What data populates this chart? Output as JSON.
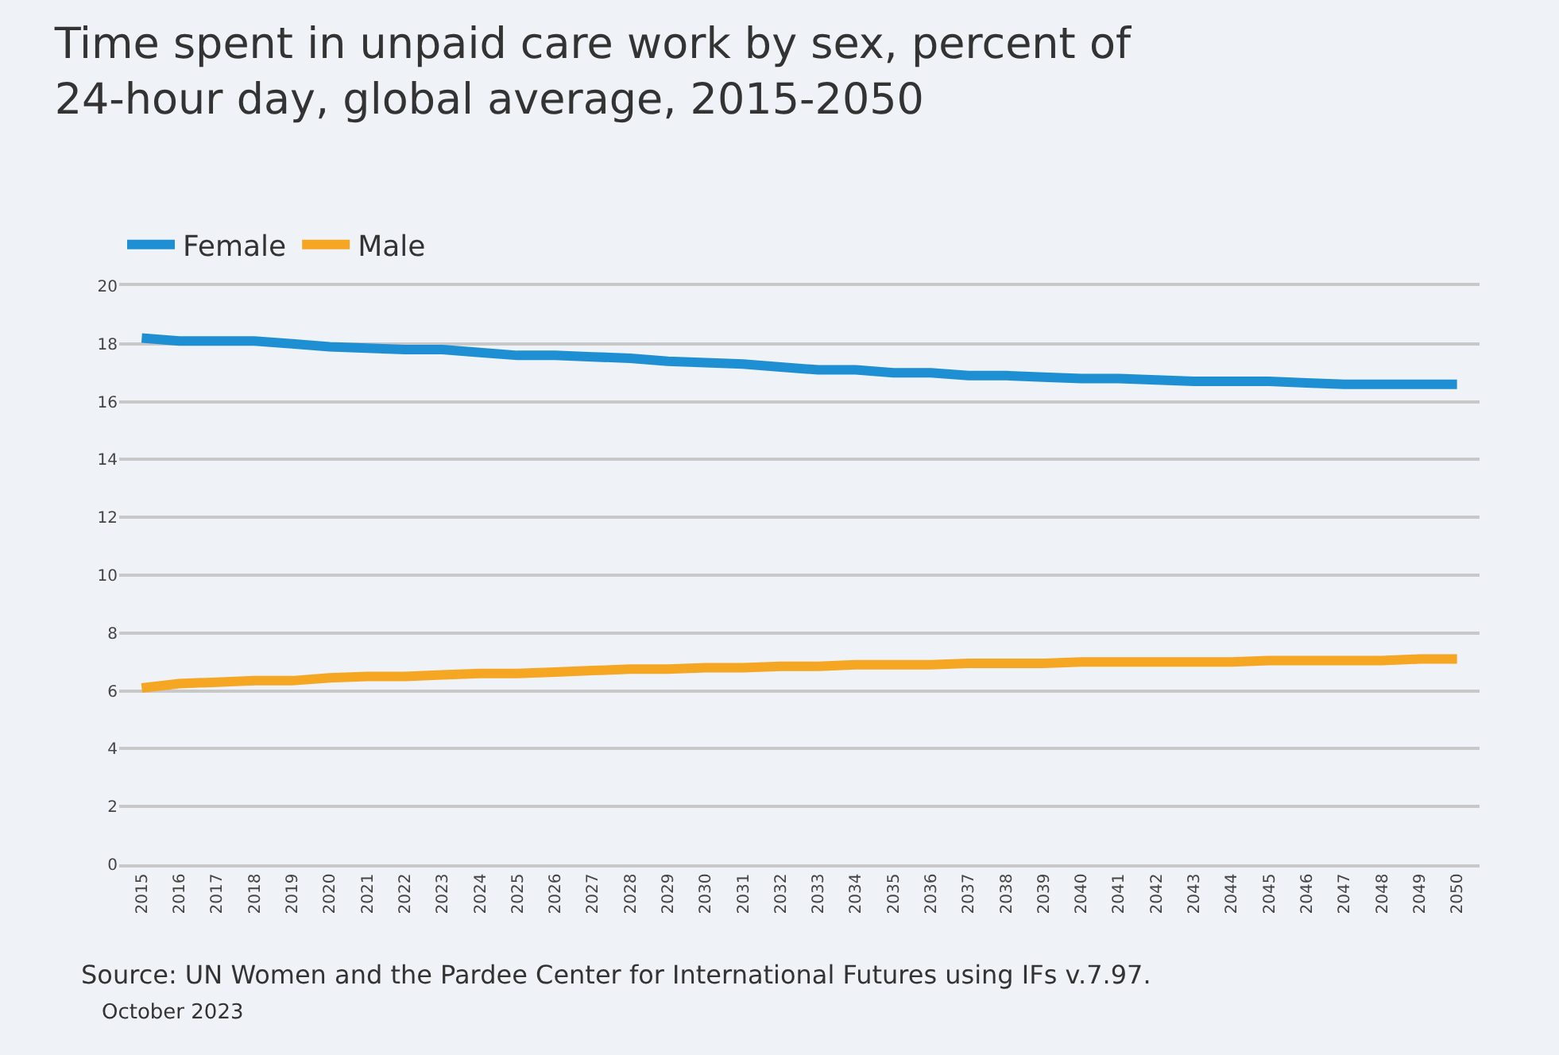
{
  "chart_data": {
    "type": "line",
    "title": "Time spent in unpaid care work by sex, percent of 24-hour day, global average, 2015-2050",
    "categories": [
      "2015",
      "2016",
      "2017",
      "2018",
      "2019",
      "2020",
      "2021",
      "2022",
      "2023",
      "2024",
      "2025",
      "2026",
      "2027",
      "2028",
      "2029",
      "2030",
      "2031",
      "2032",
      "2033",
      "2034",
      "2035",
      "2036",
      "2037",
      "2038",
      "2039",
      "2040",
      "2041",
      "2042",
      "2043",
      "2044",
      "2045",
      "2046",
      "2047",
      "2048",
      "2049",
      "2050"
    ],
    "series": [
      {
        "name": "Female",
        "color": "#1f8fd3",
        "values": [
          18.2,
          18.1,
          18.1,
          18.1,
          18.0,
          17.9,
          17.85,
          17.8,
          17.8,
          17.7,
          17.6,
          17.6,
          17.55,
          17.5,
          17.4,
          17.35,
          17.3,
          17.2,
          17.1,
          17.1,
          17.0,
          17.0,
          16.9,
          16.9,
          16.85,
          16.8,
          16.8,
          16.75,
          16.7,
          16.7,
          16.7,
          16.65,
          16.6,
          16.6,
          16.6,
          16.6
        ]
      },
      {
        "name": "Male",
        "color": "#f5a623",
        "values": [
          6.1,
          6.25,
          6.3,
          6.35,
          6.35,
          6.45,
          6.5,
          6.5,
          6.55,
          6.6,
          6.6,
          6.65,
          6.7,
          6.75,
          6.75,
          6.8,
          6.8,
          6.85,
          6.85,
          6.9,
          6.9,
          6.9,
          6.95,
          6.95,
          6.95,
          7.0,
          7.0,
          7.0,
          7.0,
          7.0,
          7.05,
          7.05,
          7.05,
          7.05,
          7.1,
          7.1
        ]
      }
    ],
    "ylim": [
      0,
      20
    ],
    "yticks": [
      0,
      2,
      4,
      6,
      8,
      10,
      12,
      14,
      16,
      18,
      20
    ],
    "grid": "y",
    "legend": "top left",
    "marker": "none",
    "line_style": "solid",
    "annotations": [
      "Source: UN Women and the Pardee Center for International Futures using IFs v.7.97.",
      "October 2023"
    ]
  }
}
